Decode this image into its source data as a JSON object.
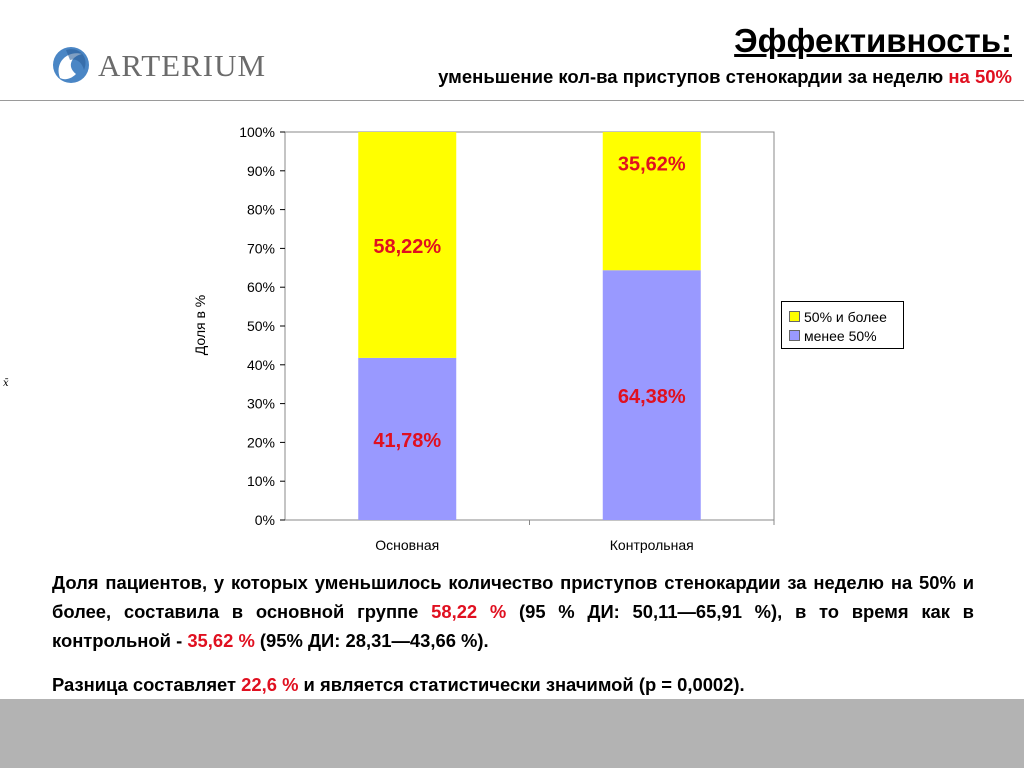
{
  "header": {
    "logo_text": "ARTERIUM",
    "title": "Эффективность:",
    "subtitle_main": "уменьшение кол-ва приступов стенокардии за неделю ",
    "subtitle_highlight": "на 50%"
  },
  "side_mark": "x̄",
  "colors": {
    "accent_red": "#e01020",
    "yellow": "#ffff00",
    "lavender": "#9999ff",
    "footer": "#b3b3b3"
  },
  "chart_data": {
    "type": "bar",
    "stacked": true,
    "categories": [
      "Основная",
      "Контрольная"
    ],
    "series": [
      {
        "name": "менее 50%",
        "values": [
          41.78,
          64.38
        ],
        "labels": [
          "41,78%",
          "64,38%"
        ],
        "color": "#9999ff"
      },
      {
        "name": "50% и более",
        "values": [
          58.22,
          35.62
        ],
        "labels": [
          "58,22%",
          "35,62%"
        ],
        "color": "#ffff00"
      }
    ],
    "ylabel": "Доля в %",
    "ylim": [
      0,
      100
    ],
    "yticks": [
      "0%",
      "10%",
      "20%",
      "30%",
      "40%",
      "50%",
      "60%",
      "70%",
      "80%",
      "90%",
      "100%"
    ],
    "legend": {
      "position": "right",
      "entries": [
        {
          "label": "50% и более",
          "color": "#ffff00"
        },
        {
          "label": "менее 50%",
          "color": "#9999ff"
        }
      ]
    }
  },
  "body": {
    "p1_a": "Доля пациентов, у которых уменьшилось количество приступов стенокардии за неделю на 50% и более, составила в основной группе ",
    "p1_h1": "58,22 %",
    "p1_b": " (95 % ДИ: 50,11—65,91 %), в то время как в контрольной - ",
    "p1_h2": "35,62 %",
    "p1_c": " (95% ДИ: 28,31—43,66 %).",
    "p2_a": "Разница составляет ",
    "p2_h": "22,6 %",
    "p2_b": " и является статистически значимой (р = 0,0002)."
  }
}
